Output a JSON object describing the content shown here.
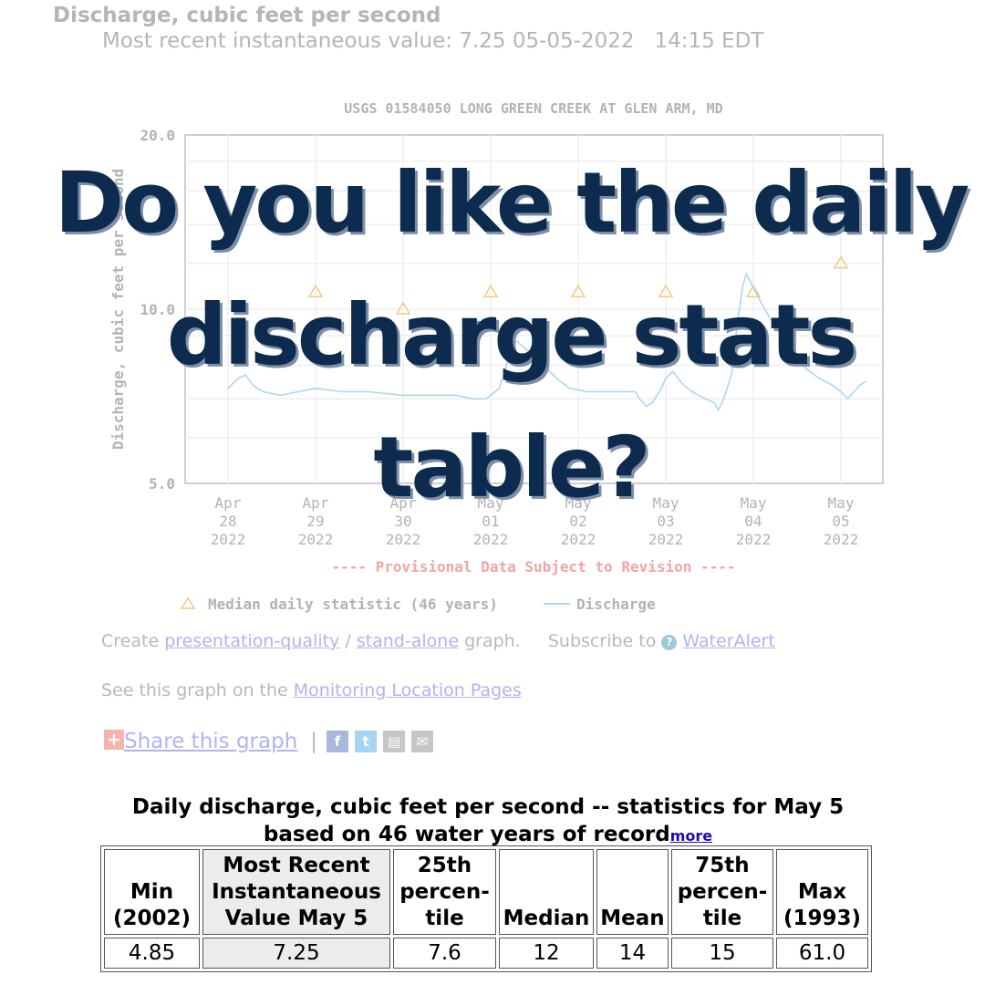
{
  "header": {
    "title": "Discharge, cubic feet per second",
    "recent": "Most recent instantaneous value: 7.25 05-05-2022   14:15 EDT"
  },
  "chart_data": {
    "type": "line",
    "title": "USGS 01584050 LONG GREEN CREEK AT GLEN ARM, MD",
    "ylabel": "Discharge, cubic feet per second",
    "xlabel": "",
    "yscale": "log",
    "ylim": [
      5,
      20
    ],
    "ytick_labels": [
      "20.0",
      "10.0",
      "5.0"
    ],
    "ytick_values": [
      20,
      10,
      5
    ],
    "xlim": [
      0,
      8
    ],
    "xticks": [
      {
        "x": 0,
        "label": [
          "Apr",
          "28",
          "2022"
        ]
      },
      {
        "x": 1,
        "label": [
          "Apr",
          "29",
          "2022"
        ]
      },
      {
        "x": 2,
        "label": [
          "Apr",
          "30",
          "2022"
        ]
      },
      {
        "x": 3,
        "label": [
          "May",
          "01",
          "2022"
        ]
      },
      {
        "x": 4,
        "label": [
          "May",
          "02",
          "2022"
        ]
      },
      {
        "x": 5,
        "label": [
          "May",
          "03",
          "2022"
        ]
      },
      {
        "x": 6,
        "label": [
          "May",
          "04",
          "2022"
        ]
      },
      {
        "x": 7,
        "label": [
          "May",
          "05",
          "2022"
        ]
      }
    ],
    "grid": true,
    "note": "---- Provisional Data Subject to Revision ----",
    "series": [
      {
        "name": "Discharge",
        "color": "#aed6ee",
        "marker": "line",
        "points": [
          [
            0.0,
            7.3
          ],
          [
            0.12,
            7.6
          ],
          [
            0.2,
            7.7
          ],
          [
            0.28,
            7.4
          ],
          [
            0.4,
            7.2
          ],
          [
            0.6,
            7.1
          ],
          [
            0.8,
            7.2
          ],
          [
            1.0,
            7.3
          ],
          [
            1.3,
            7.2
          ],
          [
            1.6,
            7.2
          ],
          [
            2.0,
            7.1
          ],
          [
            2.3,
            7.1
          ],
          [
            2.6,
            7.1
          ],
          [
            2.8,
            7.0
          ],
          [
            2.95,
            7.0
          ],
          [
            3.1,
            7.3
          ],
          [
            3.18,
            8.0
          ],
          [
            3.22,
            8.6
          ],
          [
            3.3,
            8.8
          ],
          [
            3.45,
            8.4
          ],
          [
            3.6,
            8.0
          ],
          [
            3.75,
            7.6
          ],
          [
            3.9,
            7.3
          ],
          [
            4.1,
            7.2
          ],
          [
            4.3,
            7.2
          ],
          [
            4.5,
            7.2
          ],
          [
            4.65,
            7.2
          ],
          [
            4.7,
            7.0
          ],
          [
            4.78,
            6.8
          ],
          [
            4.85,
            6.9
          ],
          [
            4.95,
            7.3
          ],
          [
            5.0,
            7.6
          ],
          [
            5.08,
            7.8
          ],
          [
            5.2,
            7.4
          ],
          [
            5.3,
            7.2
          ],
          [
            5.45,
            7.0
          ],
          [
            5.55,
            6.9
          ],
          [
            5.6,
            6.7
          ],
          [
            5.66,
            7.0
          ],
          [
            5.75,
            7.7
          ],
          [
            5.82,
            9.5
          ],
          [
            5.88,
            11.0
          ],
          [
            5.92,
            11.5
          ],
          [
            6.0,
            10.9
          ],
          [
            6.1,
            10.2
          ],
          [
            6.25,
            9.3
          ],
          [
            6.4,
            8.7
          ],
          [
            6.5,
            8.3
          ],
          [
            6.6,
            7.9
          ],
          [
            6.75,
            7.6
          ],
          [
            6.9,
            7.4
          ],
          [
            7.0,
            7.2
          ],
          [
            7.08,
            7.0
          ],
          [
            7.15,
            7.2
          ],
          [
            7.22,
            7.4
          ],
          [
            7.28,
            7.5
          ]
        ]
      },
      {
        "name": "Median daily statistic (46 years)",
        "color": "#f4c87f",
        "marker": "triangle",
        "points": [
          [
            1.0,
            10.7
          ],
          [
            2.0,
            10.0
          ],
          [
            3.0,
            10.7
          ],
          [
            4.0,
            10.7
          ],
          [
            5.0,
            10.7
          ],
          [
            6.0,
            10.7
          ],
          [
            7.0,
            12.0
          ]
        ]
      }
    ]
  },
  "links": {
    "create_prefix": "Create",
    "presentation_quality": "presentation-quality",
    "slash": "/",
    "stand_alone": "stand-alone",
    "graph_suffix": "graph.",
    "subscribe_prefix": "Subscribe to",
    "water_alert_icon": "?",
    "water_alert": "WaterAlert",
    "see_prefix": "See this graph on the",
    "monitoring_pages": "Monitoring Location Pages"
  },
  "share": {
    "plus_icon": "+",
    "label": "Share this graph",
    "separator": "|",
    "icons": [
      {
        "name": "facebook-icon",
        "glyph": "f",
        "color": "#a8b8dc"
      },
      {
        "name": "twitter-icon",
        "glyph": "t",
        "color": "#a8d4f2"
      },
      {
        "name": "print-icon",
        "glyph": "▤",
        "color": "#c6c6c6"
      },
      {
        "name": "email-icon",
        "glyph": "✉",
        "color": "#c6c6c6"
      }
    ]
  },
  "overlay": {
    "line1": "Do you like the daily",
    "line2": "discharge stats",
    "line3": "table?"
  },
  "stats": {
    "caption_line1": "Daily discharge, cubic feet per second -- statistics for May 5",
    "caption_line2": "based on 46 water years of record",
    "more": "more",
    "columns": [
      {
        "label": [
          "Min",
          "(2002)"
        ],
        "value": "4.85",
        "highlight": false
      },
      {
        "label": [
          "Most Recent",
          "Instantaneous",
          "Value May 5"
        ],
        "value": "7.25",
        "highlight": true
      },
      {
        "label": [
          "25th",
          "percen-",
          "tile"
        ],
        "value": "7.6",
        "highlight": false
      },
      {
        "label": [
          "Median"
        ],
        "value": "12",
        "highlight": false
      },
      {
        "label": [
          "Mean"
        ],
        "value": "14",
        "highlight": false
      },
      {
        "label": [
          "75th",
          "percen-",
          "tile"
        ],
        "value": "15",
        "highlight": false
      },
      {
        "label": [
          "Max",
          "(1993)"
        ],
        "value": "61.0",
        "highlight": false
      }
    ]
  }
}
